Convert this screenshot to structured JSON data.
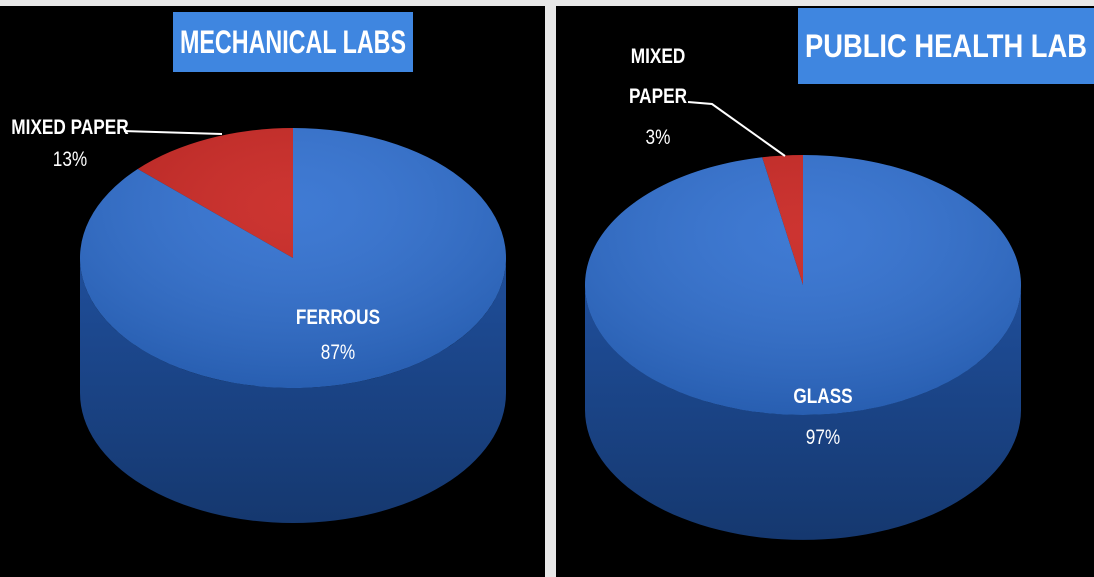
{
  "chart_data": [
    {
      "type": "pie",
      "title": "MECHANICAL LABS",
      "categories": [
        "MIXED PAPER",
        "FERROUS"
      ],
      "values": [
        13,
        87
      ],
      "value_labels": [
        "13%",
        "87%"
      ],
      "colors": [
        "#c8231f",
        "#2f6fd0"
      ]
    },
    {
      "type": "pie",
      "title": "PUBLIC HEALTH LAB",
      "categories": [
        "MIXED PAPER",
        "GLASS"
      ],
      "values": [
        3,
        97
      ],
      "value_labels": [
        "3%",
        "97%"
      ],
      "colors": [
        "#c8231f",
        "#2f6fd0"
      ]
    }
  ]
}
